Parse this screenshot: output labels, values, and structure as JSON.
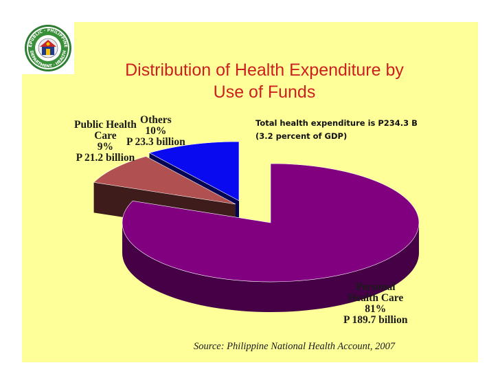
{
  "slide": {
    "title_line1": "Distribution of Health Expenditure by",
    "title_line2": "Use of Funds",
    "note_line1": "Total health expenditure  is P234.3 B",
    "note_line2": "(3.2 percent of GDP)",
    "source": "Source: Philippine National Health Account, 2007",
    "logo": {
      "top_text": "REPUBLIC · PHILIPPINES",
      "bottom_text": "DEPARTMENT · HEALTH"
    }
  },
  "chart_data": {
    "type": "pie",
    "title": "Distribution of Health Expenditure by Use of Funds",
    "total_label": "Total health expenditure  is P234.3 B",
    "slices": [
      {
        "key": "personal",
        "label_lines": [
          "Personal",
          "Health Care",
          "81%",
          "P 189.7 billion"
        ],
        "percent": 81,
        "value": 189.7,
        "unit": "billion",
        "color": "#800080"
      },
      {
        "key": "public",
        "label_lines": [
          "Public Health",
          "Care",
          "9%",
          "P 21.2 billion"
        ],
        "percent": 9,
        "value": 21.2,
        "unit": "billion",
        "color": "#b05050"
      },
      {
        "key": "others",
        "label_lines": [
          "Others",
          "10%",
          "P 23.3 billion"
        ],
        "percent": 10,
        "value": 23.3,
        "unit": "billion",
        "color": "#0a0af0"
      }
    ]
  }
}
